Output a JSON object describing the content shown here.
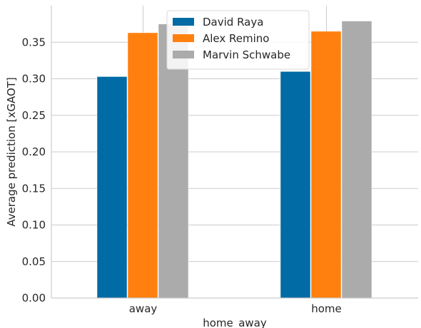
{
  "chart_data": {
    "type": "bar",
    "categories": [
      "away",
      "home"
    ],
    "series": [
      {
        "name": "David Raya",
        "values": [
          0.303,
          0.31
        ],
        "color": "#006BA4"
      },
      {
        "name": "Alex Remino",
        "values": [
          0.363,
          0.365
        ],
        "color": "#FF800E"
      },
      {
        "name": "Marvin Schwabe",
        "values": [
          0.375,
          0.379
        ],
        "color": "#ABABAB"
      }
    ],
    "xlabel": "home_away",
    "ylabel": "Average prediction [xGAOT]",
    "ylim": [
      0,
      0.4
    ],
    "yticks": [
      "0.00",
      "0.05",
      "0.10",
      "0.15",
      "0.20",
      "0.25",
      "0.30",
      "0.35"
    ],
    "grid": true,
    "legend_position": "top-center"
  }
}
